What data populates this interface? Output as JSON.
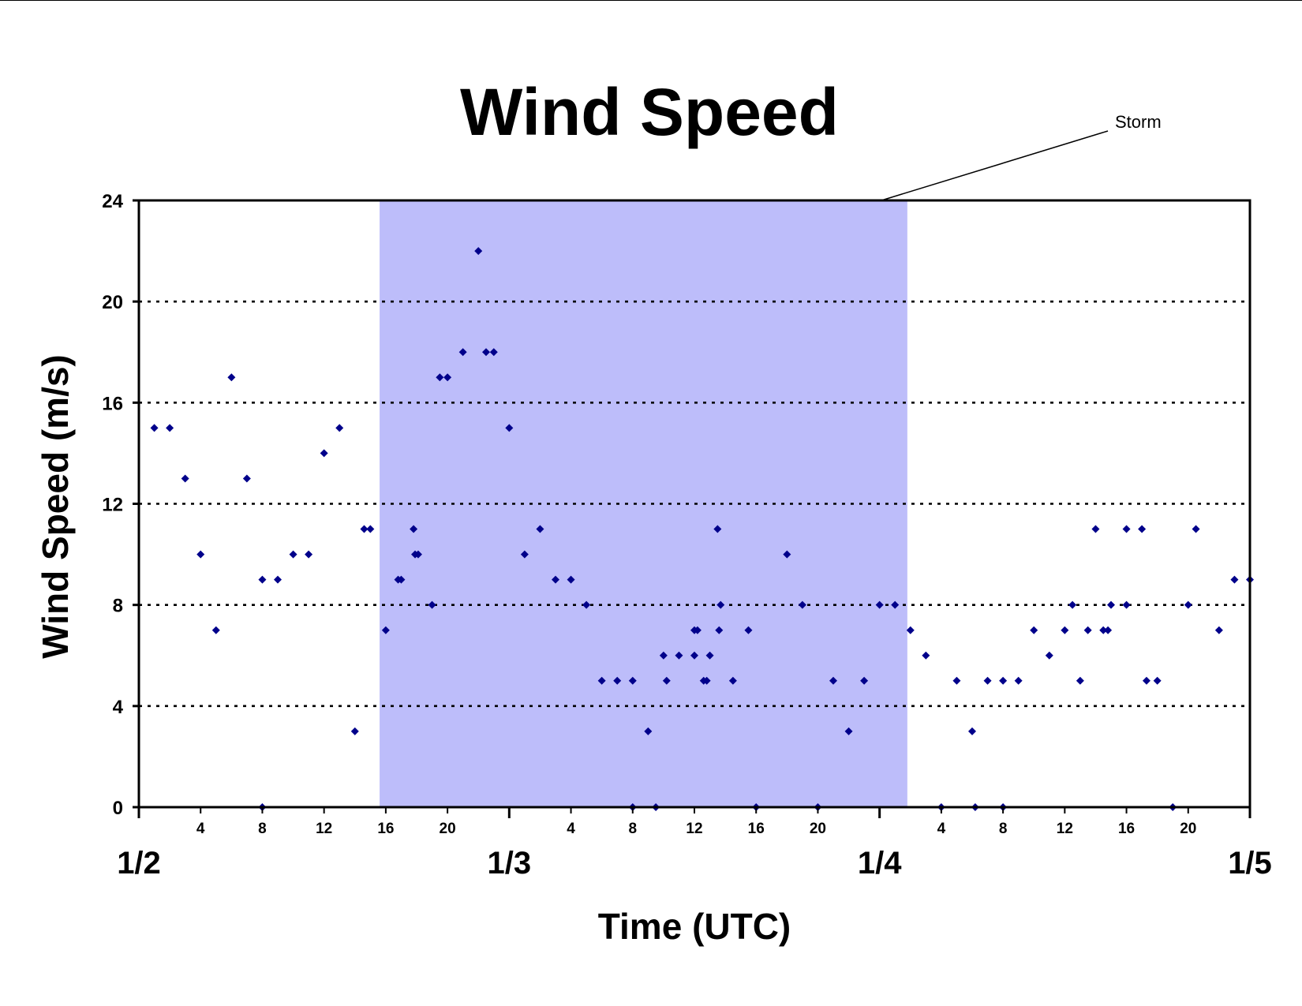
{
  "chart_data": {
    "type": "scatter",
    "title": "Wind Speed",
    "xlabel": "Time (UTC)",
    "ylabel": "Wind Speed (m/s)",
    "ylim": [
      0,
      24
    ],
    "yticks": [
      0,
      4,
      8,
      12,
      16,
      20,
      24
    ],
    "xlim_hours": [
      0,
      72
    ],
    "date_ticks": [
      {
        "hour": 0,
        "label": "1/2"
      },
      {
        "hour": 24,
        "label": "1/3"
      },
      {
        "hour": 48,
        "label": "1/4"
      },
      {
        "hour": 72,
        "label": "1/5"
      }
    ],
    "hour_ticks": [
      {
        "hour": 4,
        "label": "4"
      },
      {
        "hour": 8,
        "label": "8"
      },
      {
        "hour": 12,
        "label": "12"
      },
      {
        "hour": 16,
        "label": "16"
      },
      {
        "hour": 20,
        "label": "20"
      },
      {
        "hour": 28,
        "label": "4"
      },
      {
        "hour": 32,
        "label": "8"
      },
      {
        "hour": 36,
        "label": "12"
      },
      {
        "hour": 40,
        "label": "16"
      },
      {
        "hour": 44,
        "label": "20"
      },
      {
        "hour": 52,
        "label": "4"
      },
      {
        "hour": 56,
        "label": "8"
      },
      {
        "hour": 60,
        "label": "12"
      },
      {
        "hour": 64,
        "label": "16"
      },
      {
        "hour": 68,
        "label": "20"
      }
    ],
    "grid": "horizontal dotted",
    "marker_color": "#00008b",
    "storm_region": {
      "start_hour": 15.6,
      "end_hour": 49.8,
      "color": "#bdbdfa",
      "label": "Storm"
    },
    "series": [
      {
        "points": [
          [
            1,
            15
          ],
          [
            2,
            15
          ],
          [
            3,
            13
          ],
          [
            4,
            10
          ],
          [
            5,
            7
          ],
          [
            6,
            17
          ],
          [
            7,
            13
          ],
          [
            8,
            9
          ],
          [
            8,
            0
          ],
          [
            9,
            9
          ],
          [
            10,
            10
          ],
          [
            11,
            10
          ],
          [
            12,
            14
          ],
          [
            13,
            15
          ],
          [
            14,
            3
          ],
          [
            14.6,
            11
          ],
          [
            15,
            11
          ],
          [
            16,
            7
          ],
          [
            16.8,
            9
          ],
          [
            17,
            9
          ],
          [
            17.8,
            11
          ],
          [
            17.9,
            10
          ],
          [
            18.1,
            10
          ],
          [
            19,
            8
          ],
          [
            19.5,
            17
          ],
          [
            20,
            17
          ],
          [
            21,
            18
          ],
          [
            22,
            22
          ],
          [
            22.5,
            18
          ],
          [
            23,
            18
          ],
          [
            24,
            15
          ],
          [
            25,
            10
          ],
          [
            26,
            11
          ],
          [
            27,
            9
          ],
          [
            28,
            9
          ],
          [
            29,
            8
          ],
          [
            30,
            5
          ],
          [
            31,
            5
          ],
          [
            32,
            5
          ],
          [
            32,
            0
          ],
          [
            33,
            3
          ],
          [
            33.5,
            0
          ],
          [
            34,
            6
          ],
          [
            34.2,
            5
          ],
          [
            35,
            6
          ],
          [
            36,
            6
          ],
          [
            36,
            7
          ],
          [
            36.2,
            7
          ],
          [
            36.6,
            5
          ],
          [
            36.8,
            5
          ],
          [
            37,
            6
          ],
          [
            37.5,
            11
          ],
          [
            37.6,
            7
          ],
          [
            37.7,
            8
          ],
          [
            38.5,
            5
          ],
          [
            39.5,
            7
          ],
          [
            40,
            0
          ],
          [
            42,
            10
          ],
          [
            43,
            8
          ],
          [
            44,
            0
          ],
          [
            45,
            5
          ],
          [
            46,
            3
          ],
          [
            47,
            5
          ],
          [
            48,
            8
          ],
          [
            49,
            8
          ],
          [
            50,
            7
          ],
          [
            51,
            6
          ],
          [
            52,
            0
          ],
          [
            53,
            5
          ],
          [
            54,
            3
          ],
          [
            54.2,
            0
          ],
          [
            55,
            5
          ],
          [
            56,
            0
          ],
          [
            56,
            5
          ],
          [
            57,
            5
          ],
          [
            58,
            7
          ],
          [
            59,
            6
          ],
          [
            60,
            7
          ],
          [
            60.5,
            8
          ],
          [
            61,
            5
          ],
          [
            61.5,
            7
          ],
          [
            62,
            11
          ],
          [
            62.5,
            7
          ],
          [
            62.8,
            7
          ],
          [
            63,
            8
          ],
          [
            64,
            11
          ],
          [
            64,
            8
          ],
          [
            65,
            11
          ],
          [
            65.3,
            5
          ],
          [
            66,
            5
          ],
          [
            67,
            0
          ],
          [
            68,
            8
          ],
          [
            68.5,
            11
          ],
          [
            70,
            7
          ],
          [
            71,
            9
          ],
          [
            72,
            9
          ]
        ]
      }
    ]
  }
}
